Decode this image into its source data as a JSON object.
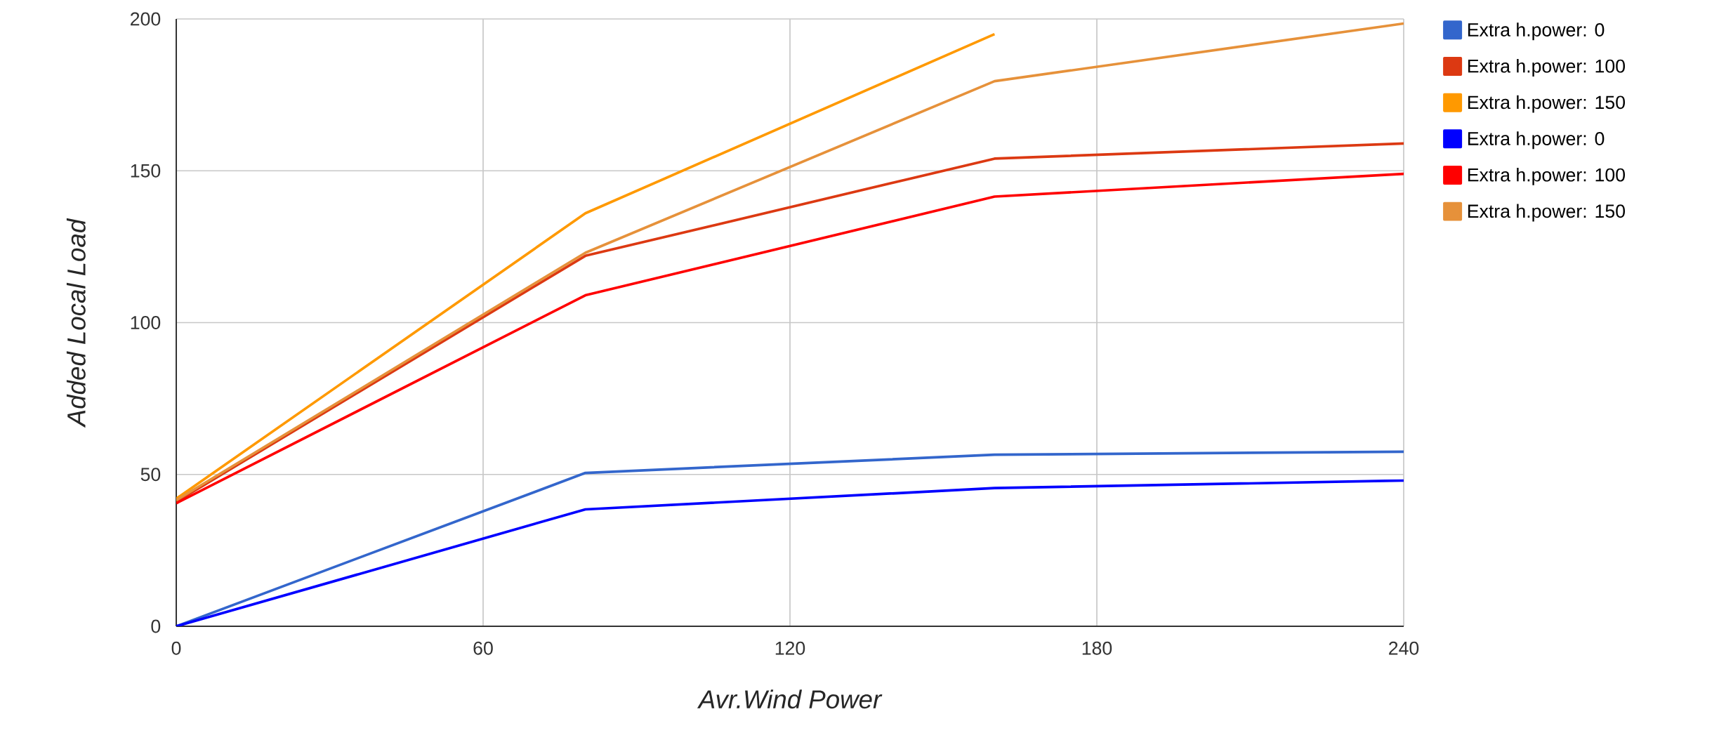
{
  "chart_data": {
    "type": "line",
    "xlabel": "Avr.Wind Power",
    "ylabel": "Added Local Load",
    "x": [
      0,
      80,
      160,
      240
    ],
    "series": [
      {
        "name": "Extra h.power: 0",
        "color": "#3366cc",
        "values": [
          0,
          50.5,
          56.5,
          57.5
        ]
      },
      {
        "name": "Extra h.power: 100",
        "color": "#dc3912",
        "values": [
          41,
          122,
          154,
          159
        ]
      },
      {
        "name": "Extra h.power: 150",
        "color": "#ff9900",
        "values": [
          42,
          136,
          195,
          null
        ]
      },
      {
        "name": "Extra h.power: 0",
        "color": "#0000ff",
        "values": [
          0,
          38.5,
          45.5,
          48
        ]
      },
      {
        "name": "Extra h.power: 100",
        "color": "#ff0000",
        "values": [
          40.5,
          109,
          141.5,
          149
        ]
      },
      {
        "name": "Extra h.power: 150",
        "color": "#e6913a",
        "values": [
          41.5,
          123,
          179.5,
          198.5
        ]
      }
    ],
    "xlim": [
      0,
      240
    ],
    "xticks": [
      0,
      60,
      120,
      180,
      240
    ],
    "ylim": [
      0,
      200
    ],
    "yticks": [
      0,
      50,
      100,
      150,
      200
    ],
    "grid": true,
    "legend": "right",
    "line_style": "solid",
    "marker": "none"
  }
}
